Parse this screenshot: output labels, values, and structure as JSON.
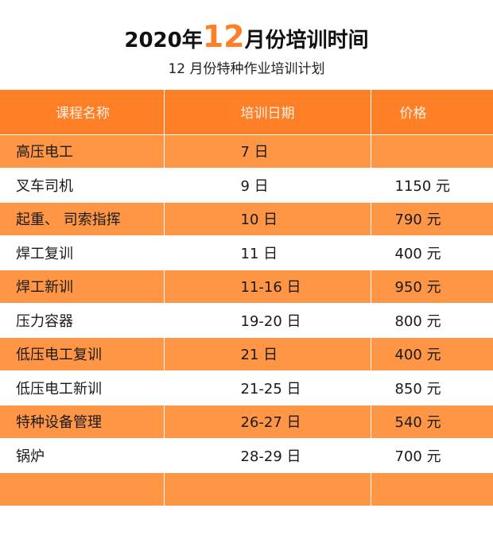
{
  "header": {
    "title_prefix": "2020年",
    "title_accent": "12",
    "title_suffix": "月份培训时间",
    "subtitle": "12 月份特种作业培训计划"
  },
  "table": {
    "columns": [
      "课程名称",
      "培训日期",
      "价格"
    ],
    "rows": [
      {
        "course": "高压电工",
        "date": "7 日",
        "price": ""
      },
      {
        "course": "叉车司机",
        "date": "9 日",
        "price": "1150 元"
      },
      {
        "course": "起重、 司索指挥",
        "date": "10 日",
        "price": "790 元"
      },
      {
        "course": "焊工复训",
        "date": "11 日",
        "price": "400 元"
      },
      {
        "course": "焊工新训",
        "date": "11-16 日",
        "price": "950 元"
      },
      {
        "course": "压力容器",
        "date": "19-20 日",
        "price": "800 元"
      },
      {
        "course": "低压电工复训",
        "date": "21 日",
        "price": "400 元"
      },
      {
        "course": "低压电工新训",
        "date": "21-25 日",
        "price": "850 元"
      },
      {
        "course": "特种设备管理",
        "date": "26-27 日",
        "price": "540 元"
      },
      {
        "course": "锅炉",
        "date": "28-29 日",
        "price": "700 元"
      },
      {
        "course": "",
        "date": "",
        "price": ""
      }
    ]
  },
  "colors": {
    "accent": "#ff7f27",
    "row_highlight": "#ff9646"
  }
}
